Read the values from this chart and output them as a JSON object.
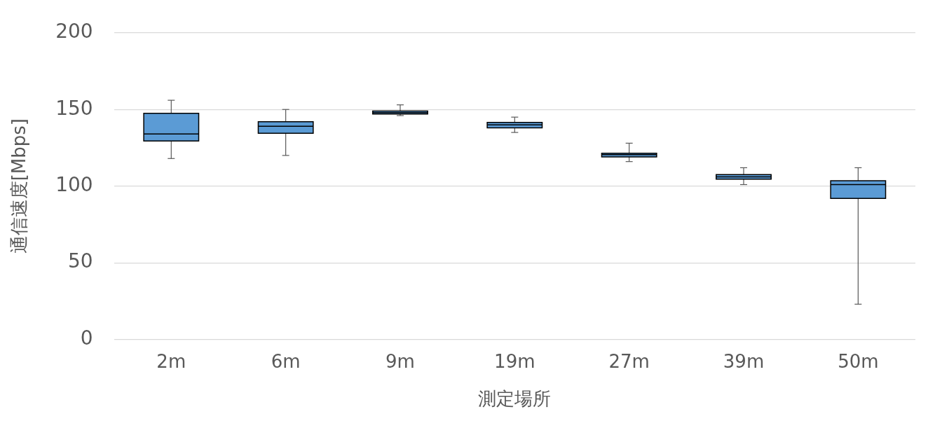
{
  "chart_data": {
    "type": "box",
    "xlabel": "測定場所",
    "ylabel": "通信速度[Mbps]",
    "categories": [
      "2m",
      "6m",
      "9m",
      "19m",
      "27m",
      "39m",
      "50m"
    ],
    "color": "#5b9bd5",
    "boxes": [
      {
        "low": 118,
        "q1": 129.5,
        "median": 134,
        "q3": 147.5,
        "high": 156
      },
      {
        "low": 120,
        "q1": 134.5,
        "median": 139,
        "q3": 142,
        "high": 150
      },
      {
        "low": 146,
        "q1": 147,
        "median": 148,
        "q3": 149,
        "high": 153
      },
      {
        "low": 135,
        "q1": 138,
        "median": 140,
        "q3": 141.5,
        "high": 145
      },
      {
        "low": 116,
        "q1": 119,
        "median": 120.5,
        "q3": 121.5,
        "high": 128
      },
      {
        "low": 101,
        "q1": 104.5,
        "median": 106,
        "q3": 107.5,
        "high": 112
      },
      {
        "low": 23,
        "q1": 92,
        "median": 101,
        "q3": 103.5,
        "high": 112
      }
    ],
    "ylim": [
      0,
      200
    ],
    "yticks": [
      0,
      50,
      100,
      150,
      200
    ],
    "grid": "y",
    "legend": false
  }
}
